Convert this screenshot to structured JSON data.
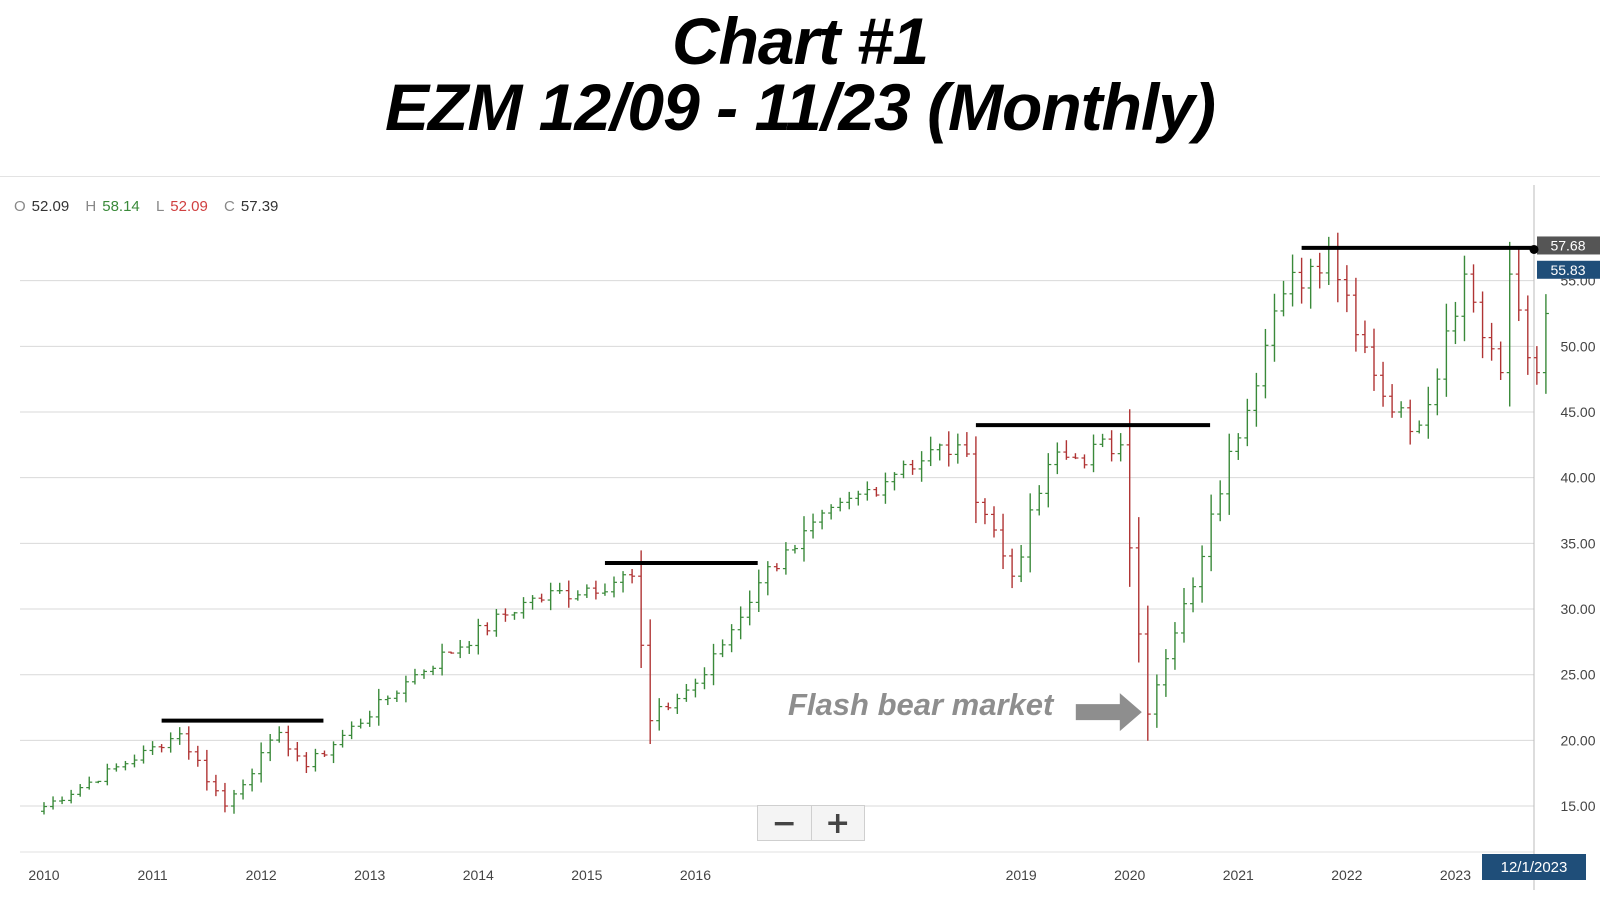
{
  "title": {
    "line1": "Chart #1",
    "line2": "EZM 12/09 - 11/23 (Monthly)"
  },
  "ohlc": {
    "o_label": "O",
    "o_value": "52.09",
    "h_label": "H",
    "h_value": "58.14",
    "l_label": "L",
    "l_value": "52.09",
    "c_label": "C",
    "c_value": "57.39"
  },
  "controls": {
    "zoom_out": "−",
    "zoom_in": "+",
    "date_badge": "12/1/2023"
  },
  "colors": {
    "up": "#3a8a3a",
    "down": "#b03434",
    "grid": "#d9d9d9",
    "resistance": "#000000",
    "price_tag_last": "#555555",
    "price_tag_current": "#1f4e79",
    "annotation": "#8e8e8e"
  },
  "chart_data": {
    "type": "ohlc-bar",
    "xlabel": "",
    "ylabel": "",
    "ylim": [
      11.5,
      60
    ],
    "y_ticks": [
      "15.00",
      "20.00",
      "25.00",
      "30.00",
      "35.00",
      "40.00",
      "45.00",
      "50.00",
      "55.00"
    ],
    "y_tick_values": [
      15,
      20,
      25,
      30,
      35,
      40,
      45,
      50,
      55
    ],
    "x_ticks": [
      "2010",
      "2011",
      "2012",
      "2013",
      "2014",
      "2015",
      "2016",
      "2019",
      "2020",
      "2021",
      "2022",
      "2023"
    ],
    "x_tick_values": [
      "2010-01",
      "2011-01",
      "2012-01",
      "2013-01",
      "2014-01",
      "2015-01",
      "2016-01",
      "2019-01",
      "2020-01",
      "2021-01",
      "2022-01",
      "2023-01"
    ],
    "price_tags": [
      {
        "label": "57.68",
        "value": 57.68
      },
      {
        "label": "55.83",
        "value": 55.83
      }
    ],
    "resistance_lines": [
      {
        "from": "2011-02",
        "to": "2012-07",
        "value": 21.5
      },
      {
        "from": "2015-03",
        "to": "2016-07",
        "value": 33.5
      },
      {
        "from": "2018-08",
        "to": "2020-09",
        "value": 44.0
      },
      {
        "from": "2021-08",
        "to": "2023-10",
        "value": 57.5
      }
    ],
    "annotations": [
      {
        "text": "Flash bear market",
        "points_to": "2020-03",
        "value": 22
      }
    ],
    "key_points": [
      {
        "date": "2009-12",
        "value": 14.6
      },
      {
        "date": "2011-04",
        "value": 20.5
      },
      {
        "date": "2011-09",
        "value": 15.0
      },
      {
        "date": "2012-03",
        "value": 20.6
      },
      {
        "date": "2012-06",
        "value": 18.0
      },
      {
        "date": "2013-06",
        "value": 25.0
      },
      {
        "date": "2014-06",
        "value": 30.5
      },
      {
        "date": "2015-06",
        "value": 32.5
      },
      {
        "date": "2015-08",
        "value": 21.5
      },
      {
        "date": "2016-02",
        "value": 25.0
      },
      {
        "date": "2016-08",
        "value": 32.0
      },
      {
        "date": "2016-11",
        "value": 34.5
      },
      {
        "date": "2017-12",
        "value": 41.0
      },
      {
        "date": "2018-06",
        "value": 42.5
      },
      {
        "date": "2018-12",
        "value": 32.5
      },
      {
        "date": "2019-04",
        "value": 41.0
      },
      {
        "date": "2019-12",
        "value": 42.5
      },
      {
        "date": "2020-03",
        "value": 22.0
      },
      {
        "date": "2020-09",
        "value": 34.0
      },
      {
        "date": "2020-12",
        "value": 42.0
      },
      {
        "date": "2021-06",
        "value": 54.0
      },
      {
        "date": "2021-11",
        "value": 57.5
      },
      {
        "date": "2022-06",
        "value": 45.0
      },
      {
        "date": "2022-09",
        "value": 44.0
      },
      {
        "date": "2023-02",
        "value": 55.5
      },
      {
        "date": "2023-06",
        "value": 48.0
      },
      {
        "date": "2023-07",
        "value": 55.5
      },
      {
        "date": "2023-10",
        "value": 48.0
      },
      {
        "date": "2023-11",
        "value": 52.5
      }
    ]
  }
}
